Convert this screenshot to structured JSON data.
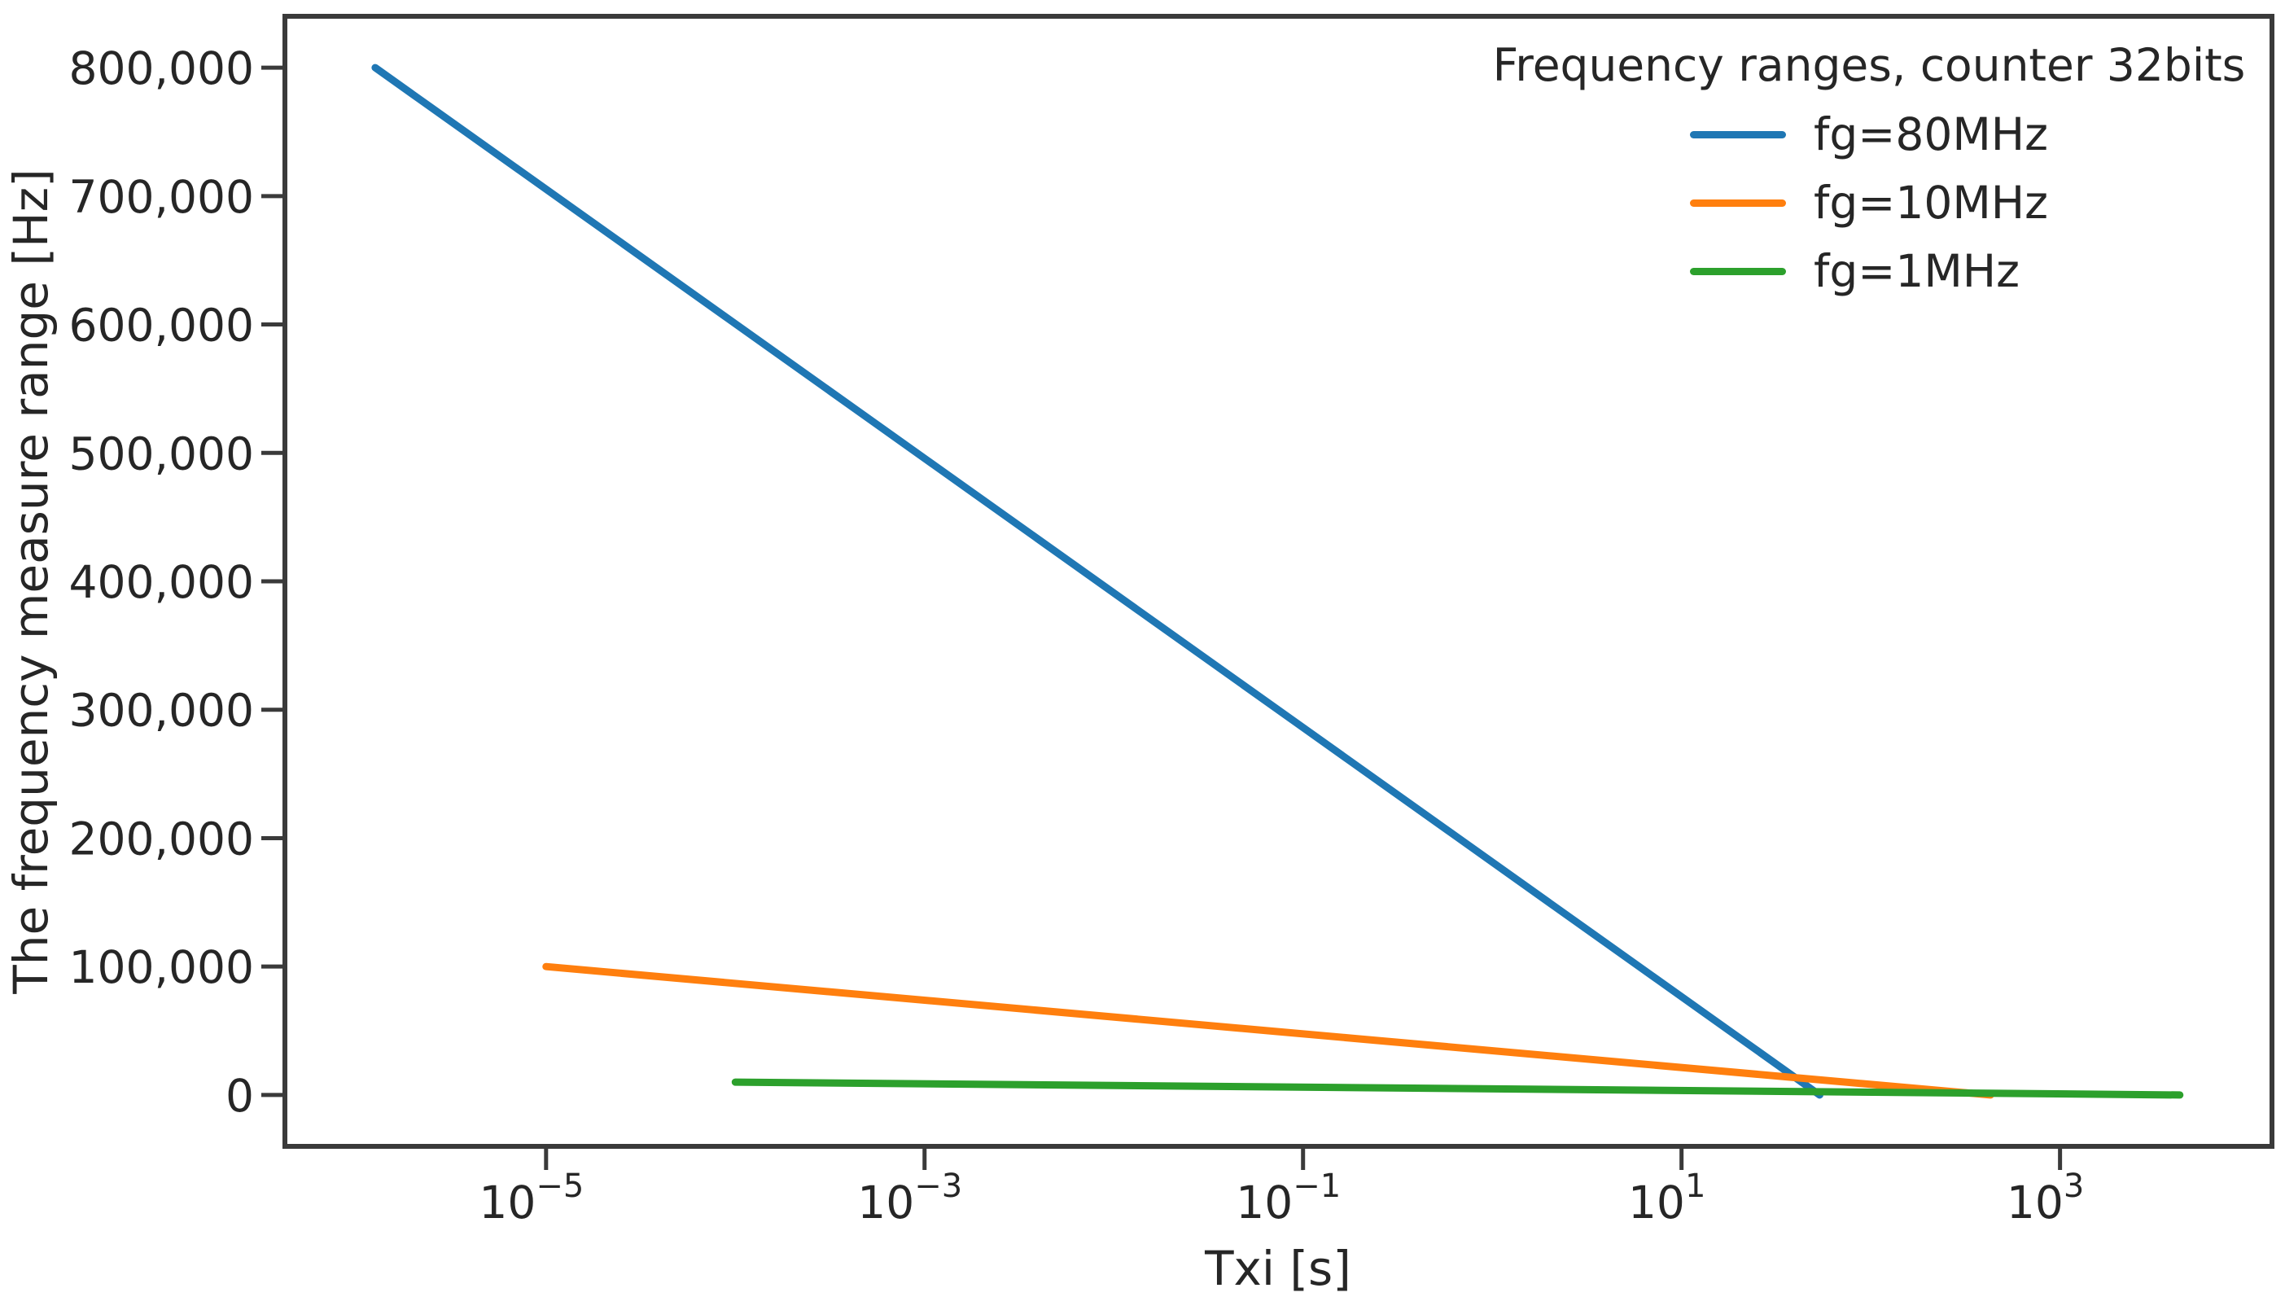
{
  "chart_data": {
    "type": "line",
    "x_scale": "log",
    "xlabel": "Txi [s]",
    "ylabel": "The frequency measure range [Hz]",
    "xlim_log10": [
      -6.38,
      4.12
    ],
    "ylim": [
      -40000,
      840000
    ],
    "grid": false,
    "background": "#ffffff",
    "axis_color": "#3a3a3a",
    "text_color": "#262626",
    "legend": {
      "title": "Frequency ranges, counter 32bits",
      "position": "upper right"
    },
    "xticks": [
      {
        "value": 1e-05,
        "base": "10",
        "exp": "−5"
      },
      {
        "value": 0.001,
        "base": "10",
        "exp": "−3"
      },
      {
        "value": 0.1,
        "base": "10",
        "exp": "−1"
      },
      {
        "value": 10,
        "base": "10",
        "exp": "1"
      },
      {
        "value": 1000,
        "base": "10",
        "exp": "3"
      }
    ],
    "yticks": [
      {
        "value": 0,
        "label": "0"
      },
      {
        "value": 100000,
        "label": "100,000"
      },
      {
        "value": 200000,
        "label": "200,000"
      },
      {
        "value": 300000,
        "label": "300,000"
      },
      {
        "value": 400000,
        "label": "400,000"
      },
      {
        "value": 500000,
        "label": "500,000"
      },
      {
        "value": 600000,
        "label": "600,000"
      },
      {
        "value": 700000,
        "label": "700,000"
      },
      {
        "value": 800000,
        "label": "800,000"
      }
    ],
    "series": [
      {
        "name": "fg=80MHz",
        "color": "#1f77b4",
        "points": [
          [
            1.25e-06,
            800000
          ],
          [
            53.6870912,
            0.019
          ]
        ]
      },
      {
        "name": "fg=10MHz",
        "color": "#ff7f0e",
        "points": [
          [
            1e-05,
            100000
          ],
          [
            429.4967296,
            0.0023
          ]
        ]
      },
      {
        "name": "fg=1MHz",
        "color": "#2ca02c",
        "points": [
          [
            0.0001,
            10000
          ],
          [
            4294.967296,
            0.00023
          ]
        ]
      }
    ]
  }
}
